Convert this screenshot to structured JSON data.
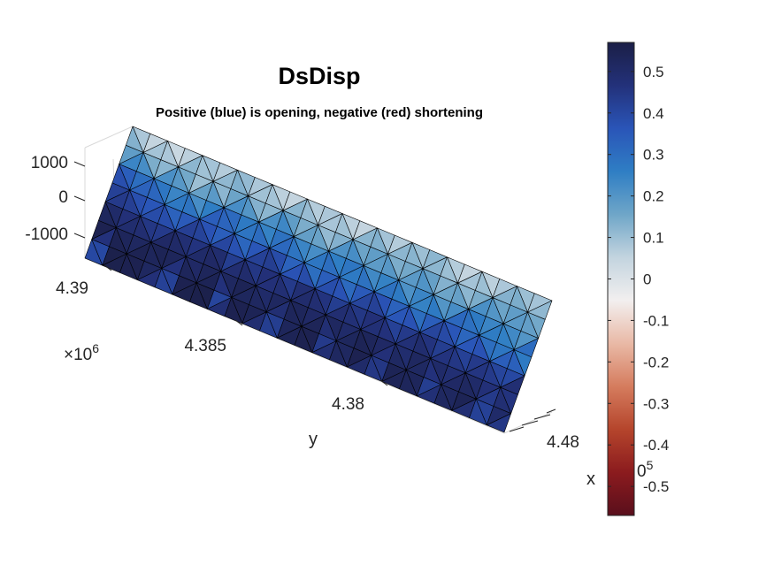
{
  "chart_data": {
    "type": "3d-trisurf",
    "title": "DsDisp",
    "subtitle": "Positive (blue) is opening, negative (red) shortening",
    "xlabel": "x",
    "ylabel": "y",
    "z_ticks": [
      "1000",
      "0",
      "-1000"
    ],
    "y_ticks": [
      "4.39",
      "4.385",
      "4.38"
    ],
    "y_exponent_base": "×10",
    "y_exponent": "6",
    "x_ticks": [
      "4.48"
    ],
    "x_exponent_fragment": "0",
    "x_exponent": "5",
    "colorbar": {
      "min": -0.57,
      "max": 0.57,
      "ticks": [
        0.5,
        0.4,
        0.3,
        0.2,
        0.1,
        0,
        -0.1,
        -0.2,
        -0.3,
        -0.4,
        -0.5
      ],
      "tick_labels": [
        "0.5",
        "0.4",
        "0.3",
        "0.2",
        "0.1",
        "0",
        "-0.1",
        "-0.2",
        "-0.3",
        "-0.4",
        "-0.5"
      ],
      "colormap": [
        "#5a0f1c",
        "#8b1b1e",
        "#b5452c",
        "#d57c5e",
        "#e9b9a6",
        "#f2efef",
        "#c3d4df",
        "#6fa6c8",
        "#2f7ec4",
        "#2a55b8",
        "#23317a",
        "#1b1f47"
      ]
    },
    "surface": {
      "rows": 7,
      "cols": 24,
      "values": [
        [
          0.08,
          0.05,
          0.04,
          0.06,
          0.09,
          0.07,
          0.11,
          0.08,
          0.06,
          0.05,
          0.07,
          0.08,
          0.06,
          0.05,
          0.09,
          0.07,
          0.1,
          0.12,
          0.07,
          0.05,
          0.06,
          0.08,
          0.1,
          0.09
        ],
        [
          0.18,
          0.14,
          0.12,
          0.15,
          0.1,
          0.12,
          0.16,
          0.13,
          0.12,
          0.18,
          0.14,
          0.11,
          0.13,
          0.16,
          0.18,
          0.14,
          0.15,
          0.17,
          0.13,
          0.12,
          0.14,
          0.16,
          0.18,
          0.15
        ],
        [
          0.34,
          0.3,
          0.28,
          0.24,
          0.22,
          0.26,
          0.31,
          0.27,
          0.25,
          0.29,
          0.24,
          0.22,
          0.26,
          0.28,
          0.23,
          0.25,
          0.21,
          0.24,
          0.2,
          0.22,
          0.27,
          0.24,
          0.23,
          0.2
        ],
        [
          0.42,
          0.38,
          0.36,
          0.33,
          0.35,
          0.37,
          0.34,
          0.32,
          0.36,
          0.39,
          0.33,
          0.3,
          0.34,
          0.31,
          0.35,
          0.37,
          0.33,
          0.3,
          0.34,
          0.36,
          0.32,
          0.3,
          0.28,
          0.27
        ],
        [
          0.5,
          0.47,
          0.45,
          0.44,
          0.48,
          0.46,
          0.49,
          0.43,
          0.45,
          0.47,
          0.44,
          0.48,
          0.46,
          0.43,
          0.45,
          0.47,
          0.42,
          0.44,
          0.46,
          0.43,
          0.42,
          0.44,
          0.41,
          0.4
        ],
        [
          0.55,
          0.53,
          0.52,
          0.54,
          0.53,
          0.51,
          0.53,
          0.52,
          0.54,
          0.5,
          0.52,
          0.53,
          0.51,
          0.52,
          0.5,
          0.53,
          0.51,
          0.49,
          0.52,
          0.5,
          0.48,
          0.5,
          0.47,
          0.46
        ],
        [
          0.4,
          0.56,
          0.55,
          0.52,
          0.42,
          0.55,
          0.56,
          0.41,
          0.55,
          0.54,
          0.43,
          0.53,
          0.55,
          0.44,
          0.52,
          0.55,
          0.45,
          0.54,
          0.53,
          0.43,
          0.52,
          0.54,
          0.42,
          0.5
        ]
      ]
    }
  }
}
